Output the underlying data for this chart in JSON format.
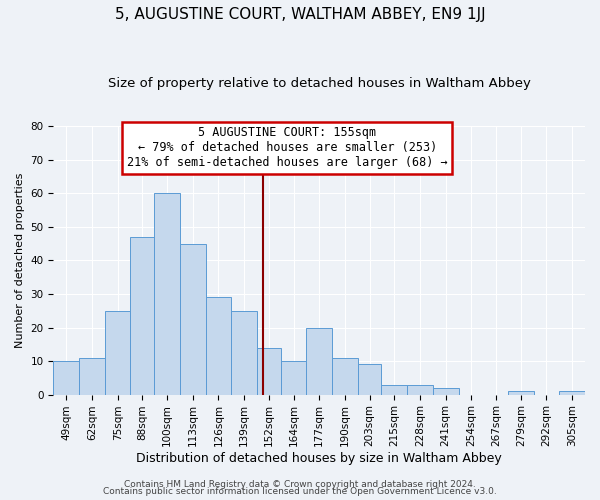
{
  "title": "5, AUGUSTINE COURT, WALTHAM ABBEY, EN9 1JJ",
  "subtitle": "Size of property relative to detached houses in Waltham Abbey",
  "xlabel": "Distribution of detached houses by size in Waltham Abbey",
  "ylabel": "Number of detached properties",
  "bar_labels": [
    "49sqm",
    "62sqm",
    "75sqm",
    "88sqm",
    "100sqm",
    "113sqm",
    "126sqm",
    "139sqm",
    "152sqm",
    "164sqm",
    "177sqm",
    "190sqm",
    "203sqm",
    "215sqm",
    "228sqm",
    "241sqm",
    "254sqm",
    "267sqm",
    "279sqm",
    "292sqm",
    "305sqm"
  ],
  "bar_values": [
    10,
    11,
    25,
    47,
    60,
    45,
    29,
    25,
    14,
    10,
    20,
    11,
    9,
    3,
    3,
    2,
    0,
    0,
    1,
    0,
    1
  ],
  "bin_edges": [
    49,
    62,
    75,
    88,
    100,
    113,
    126,
    139,
    152,
    164,
    177,
    190,
    203,
    215,
    228,
    241,
    254,
    267,
    279,
    292,
    305,
    318
  ],
  "bar_color": "#c5d8ed",
  "bar_edge_color": "#5b9bd5",
  "vline_x": 155,
  "vline_color": "#8b0000",
  "annotation_line1": "5 AUGUSTINE COURT: 155sqm",
  "annotation_line2": "← 79% of detached houses are smaller (253)",
  "annotation_line3": "21% of semi-detached houses are larger (68) →",
  "ylim": [
    0,
    80
  ],
  "yticks": [
    0,
    10,
    20,
    30,
    40,
    50,
    60,
    70,
    80
  ],
  "background_color": "#eef2f7",
  "grid_color": "#ffffff",
  "footer_line1": "Contains HM Land Registry data © Crown copyright and database right 2024.",
  "footer_line2": "Contains public sector information licensed under the Open Government Licence v3.0.",
  "title_fontsize": 11,
  "subtitle_fontsize": 9.5,
  "xlabel_fontsize": 9,
  "ylabel_fontsize": 8,
  "tick_fontsize": 7.5,
  "ann_fontsize": 8.5,
  "footer_fontsize": 6.5
}
